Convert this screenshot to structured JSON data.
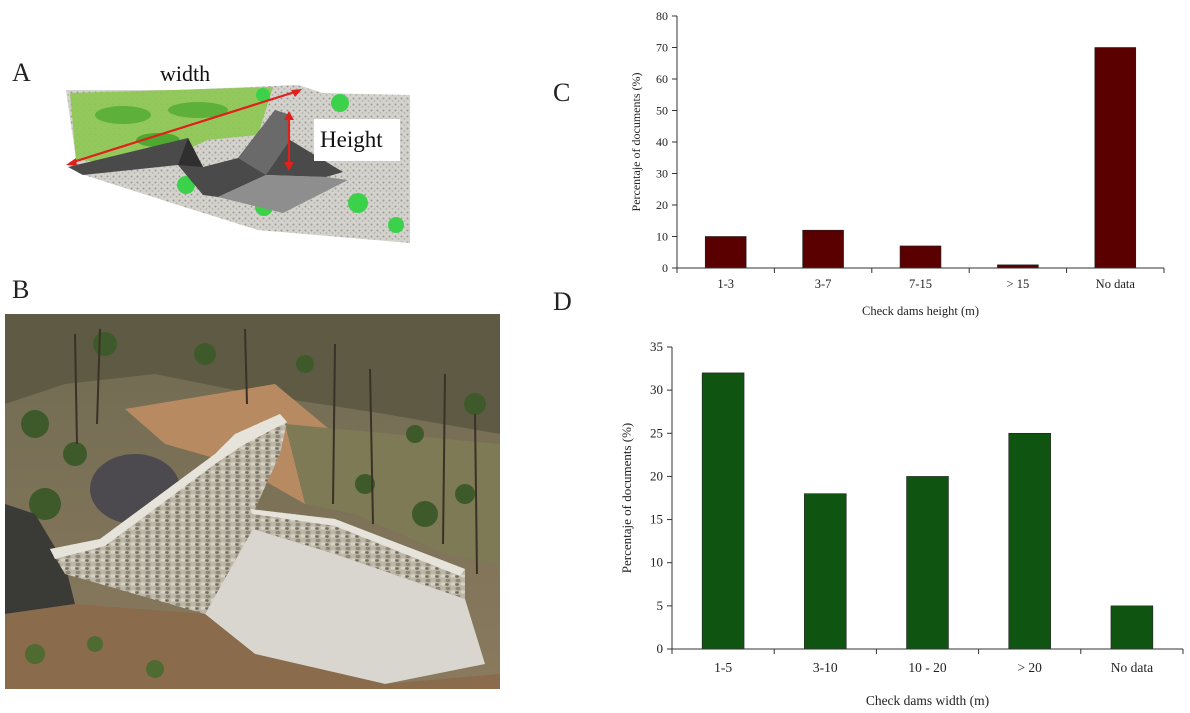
{
  "panels": {
    "a": "A",
    "b": "B",
    "c": "C",
    "d": "D"
  },
  "diagram_a": {
    "width_label": "width",
    "height_label": "Height",
    "arrow_color": "#e0201a"
  },
  "chart_data": [
    {
      "type": "bar",
      "panel": "C",
      "categories": [
        "1-3",
        "3-7",
        "7-15",
        "> 15",
        "No data"
      ],
      "values": [
        10,
        12,
        7,
        1,
        70
      ],
      "xlabel": "Check dams height (m)",
      "ylabel": "Percentaje of documents (%)",
      "ylim": [
        0,
        80
      ],
      "yticks": [
        0,
        10,
        20,
        30,
        40,
        50,
        60,
        70,
        80
      ],
      "bar_color": "#5a0000",
      "grid": false
    },
    {
      "type": "bar",
      "panel": "D",
      "categories": [
        "1-5",
        "3-10",
        "10 - 20",
        "> 20",
        "No data"
      ],
      "values": [
        32,
        18,
        20,
        25,
        5
      ],
      "xlabel": "Check dams width (m)",
      "ylabel": "Percentaje of documents (%)",
      "ylim": [
        0,
        35
      ],
      "yticks": [
        0,
        5,
        10,
        15,
        20,
        25,
        30,
        35
      ],
      "bar_color": "#0f5410",
      "grid": false
    }
  ]
}
